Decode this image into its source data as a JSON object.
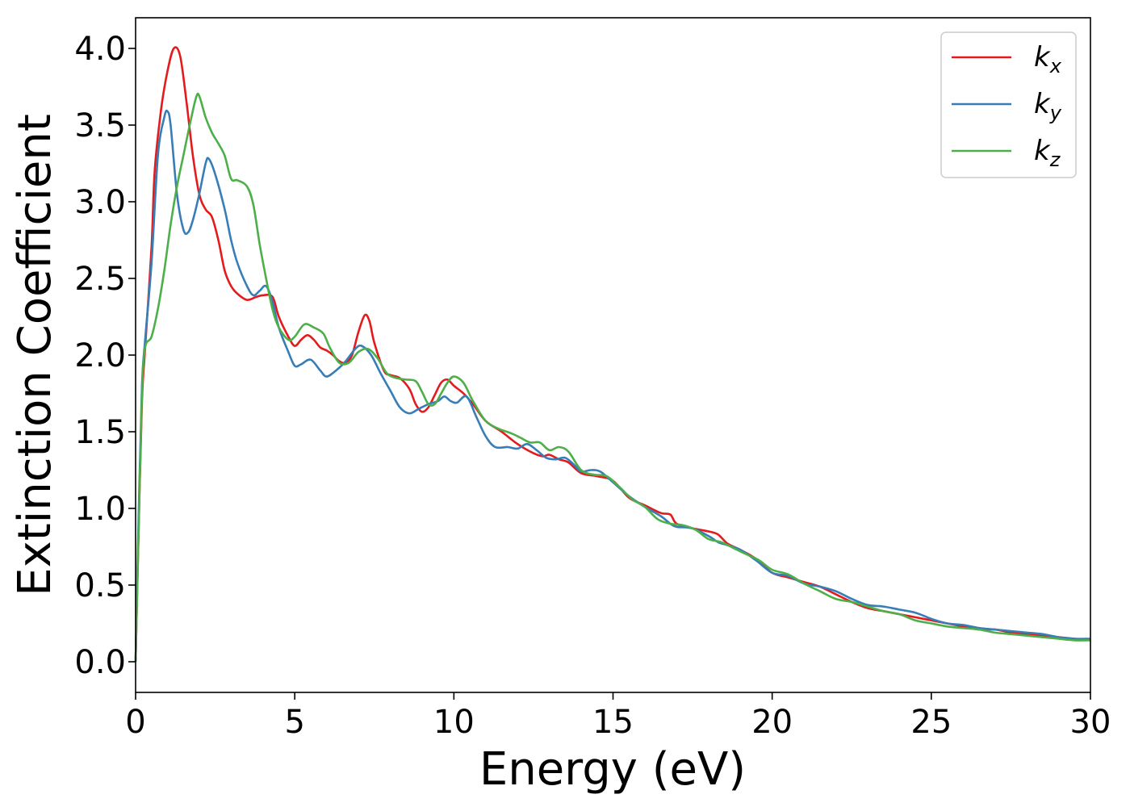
{
  "chart_data": {
    "type": "line",
    "title": "",
    "xlabel": "Energy (eV)",
    "ylabel": "Extinction Coefficient",
    "xlim": [
      0,
      30
    ],
    "ylim": [
      -0.2,
      4.2
    ],
    "xticks": [
      0,
      5,
      10,
      15,
      20,
      25,
      30
    ],
    "xtick_labels": [
      "0",
      "5",
      "10",
      "15",
      "20",
      "25",
      "30"
    ],
    "yticks": [
      0.0,
      0.5,
      1.0,
      1.5,
      2.0,
      2.5,
      3.0,
      3.5,
      4.0
    ],
    "ytick_labels": [
      "0.0",
      "0.5",
      "1.0",
      "1.5",
      "2.0",
      "2.5",
      "3.0",
      "3.5",
      "4.0"
    ],
    "grid": false,
    "legend_position": "top-right",
    "series": [
      {
        "name": "k",
        "subscript": "x",
        "color": "#e41a1c",
        "points": [
          [
            0,
            0
          ],
          [
            0.1,
            0.9
          ],
          [
            0.2,
            1.7
          ],
          [
            0.3,
            2.05
          ],
          [
            0.5,
            2.7
          ],
          [
            0.6,
            3.2
          ],
          [
            0.8,
            3.6
          ],
          [
            1.0,
            3.85
          ],
          [
            1.2,
            4.0
          ],
          [
            1.4,
            3.95
          ],
          [
            1.6,
            3.65
          ],
          [
            1.8,
            3.3
          ],
          [
            2.0,
            3.05
          ],
          [
            2.2,
            2.95
          ],
          [
            2.4,
            2.9
          ],
          [
            2.6,
            2.75
          ],
          [
            2.8,
            2.55
          ],
          [
            3.0,
            2.45
          ],
          [
            3.2,
            2.4
          ],
          [
            3.5,
            2.36
          ],
          [
            3.8,
            2.38
          ],
          [
            4.0,
            2.39
          ],
          [
            4.3,
            2.38
          ],
          [
            4.5,
            2.25
          ],
          [
            4.8,
            2.12
          ],
          [
            5.0,
            2.06
          ],
          [
            5.2,
            2.1
          ],
          [
            5.4,
            2.13
          ],
          [
            5.6,
            2.1
          ],
          [
            5.8,
            2.05
          ],
          [
            6.0,
            2.03
          ],
          [
            6.2,
            2.0
          ],
          [
            6.4,
            1.96
          ],
          [
            6.6,
            1.95
          ],
          [
            6.8,
            2.0
          ],
          [
            7.0,
            2.15
          ],
          [
            7.2,
            2.26
          ],
          [
            7.35,
            2.22
          ],
          [
            7.5,
            2.08
          ],
          [
            7.8,
            1.9
          ],
          [
            8.0,
            1.87
          ],
          [
            8.3,
            1.85
          ],
          [
            8.6,
            1.78
          ],
          [
            8.8,
            1.68
          ],
          [
            9.0,
            1.63
          ],
          [
            9.2,
            1.66
          ],
          [
            9.4,
            1.74
          ],
          [
            9.6,
            1.82
          ],
          [
            9.8,
            1.84
          ],
          [
            10.0,
            1.8
          ],
          [
            10.3,
            1.75
          ],
          [
            10.6,
            1.68
          ],
          [
            11.0,
            1.57
          ],
          [
            11.5,
            1.5
          ],
          [
            12.0,
            1.42
          ],
          [
            12.5,
            1.36
          ],
          [
            12.8,
            1.34
          ],
          [
            13.0,
            1.35
          ],
          [
            13.3,
            1.32
          ],
          [
            13.6,
            1.3
          ],
          [
            14.0,
            1.23
          ],
          [
            14.5,
            1.21
          ],
          [
            15.0,
            1.18
          ],
          [
            15.5,
            1.07
          ],
          [
            16.0,
            1.02
          ],
          [
            16.5,
            0.97
          ],
          [
            16.8,
            0.96
          ],
          [
            17.0,
            0.9
          ],
          [
            17.5,
            0.87
          ],
          [
            18.0,
            0.85
          ],
          [
            18.3,
            0.83
          ],
          [
            18.6,
            0.77
          ],
          [
            19.0,
            0.73
          ],
          [
            19.5,
            0.67
          ],
          [
            20.0,
            0.58
          ],
          [
            20.5,
            0.55
          ],
          [
            21.0,
            0.52
          ],
          [
            21.5,
            0.49
          ],
          [
            22.0,
            0.44
          ],
          [
            22.5,
            0.39
          ],
          [
            23.0,
            0.35
          ],
          [
            23.5,
            0.33
          ],
          [
            24.0,
            0.31
          ],
          [
            24.5,
            0.29
          ],
          [
            25.0,
            0.27
          ],
          [
            25.5,
            0.25
          ],
          [
            26.0,
            0.23
          ],
          [
            26.5,
            0.21
          ],
          [
            27.0,
            0.21
          ],
          [
            27.5,
            0.19
          ],
          [
            28.0,
            0.18
          ],
          [
            28.5,
            0.17
          ],
          [
            29.0,
            0.16
          ],
          [
            29.5,
            0.15
          ],
          [
            30.0,
            0.14
          ]
        ]
      },
      {
        "name": "k",
        "subscript": "y",
        "color": "#377eb8",
        "points": [
          [
            0,
            0
          ],
          [
            0.1,
            1.0
          ],
          [
            0.2,
            1.8
          ],
          [
            0.3,
            2.1
          ],
          [
            0.5,
            2.6
          ],
          [
            0.7,
            3.3
          ],
          [
            0.9,
            3.55
          ],
          [
            1.0,
            3.59
          ],
          [
            1.1,
            3.5
          ],
          [
            1.3,
            3.05
          ],
          [
            1.5,
            2.82
          ],
          [
            1.65,
            2.8
          ],
          [
            1.8,
            2.88
          ],
          [
            2.0,
            3.05
          ],
          [
            2.2,
            3.25
          ],
          [
            2.3,
            3.28
          ],
          [
            2.5,
            3.18
          ],
          [
            2.8,
            2.95
          ],
          [
            3.0,
            2.75
          ],
          [
            3.2,
            2.6
          ],
          [
            3.5,
            2.45
          ],
          [
            3.7,
            2.39
          ],
          [
            3.9,
            2.42
          ],
          [
            4.1,
            2.45
          ],
          [
            4.3,
            2.35
          ],
          [
            4.5,
            2.18
          ],
          [
            4.8,
            2.02
          ],
          [
            5.0,
            1.93
          ],
          [
            5.2,
            1.94
          ],
          [
            5.5,
            1.97
          ],
          [
            5.8,
            1.9
          ],
          [
            6.0,
            1.86
          ],
          [
            6.3,
            1.9
          ],
          [
            6.6,
            1.96
          ],
          [
            6.9,
            2.04
          ],
          [
            7.1,
            2.06
          ],
          [
            7.4,
            2.0
          ],
          [
            7.7,
            1.88
          ],
          [
            8.0,
            1.77
          ],
          [
            8.3,
            1.66
          ],
          [
            8.6,
            1.62
          ],
          [
            8.9,
            1.65
          ],
          [
            9.2,
            1.68
          ],
          [
            9.5,
            1.7
          ],
          [
            9.7,
            1.73
          ],
          [
            9.9,
            1.7
          ],
          [
            10.1,
            1.69
          ],
          [
            10.4,
            1.73
          ],
          [
            10.7,
            1.6
          ],
          [
            11.0,
            1.47
          ],
          [
            11.3,
            1.4
          ],
          [
            11.7,
            1.4
          ],
          [
            12.0,
            1.39
          ],
          [
            12.3,
            1.42
          ],
          [
            12.6,
            1.38
          ],
          [
            12.9,
            1.33
          ],
          [
            13.2,
            1.32
          ],
          [
            13.5,
            1.33
          ],
          [
            13.8,
            1.28
          ],
          [
            14.0,
            1.24
          ],
          [
            14.3,
            1.25
          ],
          [
            14.6,
            1.24
          ],
          [
            15.0,
            1.17
          ],
          [
            15.5,
            1.08
          ],
          [
            16.0,
            1.01
          ],
          [
            16.5,
            0.95
          ],
          [
            16.8,
            0.9
          ],
          [
            17.0,
            0.88
          ],
          [
            17.5,
            0.87
          ],
          [
            18.0,
            0.82
          ],
          [
            18.3,
            0.78
          ],
          [
            18.6,
            0.76
          ],
          [
            19.0,
            0.73
          ],
          [
            19.5,
            0.66
          ],
          [
            20.0,
            0.58
          ],
          [
            20.5,
            0.56
          ],
          [
            21.0,
            0.51
          ],
          [
            21.5,
            0.49
          ],
          [
            22.0,
            0.46
          ],
          [
            22.5,
            0.41
          ],
          [
            23.0,
            0.37
          ],
          [
            23.5,
            0.36
          ],
          [
            24.0,
            0.34
          ],
          [
            24.5,
            0.32
          ],
          [
            25.0,
            0.28
          ],
          [
            25.5,
            0.25
          ],
          [
            26.0,
            0.24
          ],
          [
            26.5,
            0.22
          ],
          [
            27.0,
            0.21
          ],
          [
            27.5,
            0.2
          ],
          [
            28.0,
            0.19
          ],
          [
            28.5,
            0.18
          ],
          [
            29.0,
            0.16
          ],
          [
            29.5,
            0.15
          ],
          [
            30.0,
            0.15
          ]
        ]
      },
      {
        "name": "k",
        "subscript": "z",
        "color": "#4daf4a",
        "points": [
          [
            0,
            0
          ],
          [
            0.1,
            0.9
          ],
          [
            0.2,
            1.75
          ],
          [
            0.3,
            2.05
          ],
          [
            0.5,
            2.12
          ],
          [
            0.7,
            2.3
          ],
          [
            0.9,
            2.55
          ],
          [
            1.1,
            2.85
          ],
          [
            1.3,
            3.1
          ],
          [
            1.5,
            3.3
          ],
          [
            1.7,
            3.5
          ],
          [
            1.9,
            3.68
          ],
          [
            2.0,
            3.69
          ],
          [
            2.2,
            3.55
          ],
          [
            2.4,
            3.45
          ],
          [
            2.6,
            3.38
          ],
          [
            2.8,
            3.3
          ],
          [
            3.0,
            3.15
          ],
          [
            3.2,
            3.14
          ],
          [
            3.5,
            3.1
          ],
          [
            3.7,
            2.98
          ],
          [
            3.9,
            2.72
          ],
          [
            4.1,
            2.5
          ],
          [
            4.3,
            2.3
          ],
          [
            4.5,
            2.18
          ],
          [
            4.8,
            2.1
          ],
          [
            5.0,
            2.12
          ],
          [
            5.3,
            2.2
          ],
          [
            5.6,
            2.18
          ],
          [
            5.9,
            2.14
          ],
          [
            6.1,
            2.05
          ],
          [
            6.4,
            1.95
          ],
          [
            6.7,
            1.95
          ],
          [
            7.0,
            2.02
          ],
          [
            7.3,
            2.04
          ],
          [
            7.6,
            1.98
          ],
          [
            7.9,
            1.88
          ],
          [
            8.2,
            1.85
          ],
          [
            8.5,
            1.84
          ],
          [
            8.8,
            1.83
          ],
          [
            9.0,
            1.76
          ],
          [
            9.2,
            1.68
          ],
          [
            9.4,
            1.68
          ],
          [
            9.6,
            1.75
          ],
          [
            9.8,
            1.82
          ],
          [
            10.0,
            1.86
          ],
          [
            10.3,
            1.82
          ],
          [
            10.6,
            1.7
          ],
          [
            11.0,
            1.57
          ],
          [
            11.4,
            1.52
          ],
          [
            11.8,
            1.49
          ],
          [
            12.1,
            1.46
          ],
          [
            12.4,
            1.43
          ],
          [
            12.7,
            1.43
          ],
          [
            13.0,
            1.38
          ],
          [
            13.3,
            1.4
          ],
          [
            13.6,
            1.37
          ],
          [
            14.0,
            1.25
          ],
          [
            14.4,
            1.22
          ],
          [
            14.8,
            1.21
          ],
          [
            15.2,
            1.14
          ],
          [
            15.6,
            1.06
          ],
          [
            16.0,
            1.01
          ],
          [
            16.4,
            0.93
          ],
          [
            16.8,
            0.9
          ],
          [
            17.2,
            0.89
          ],
          [
            17.6,
            0.86
          ],
          [
            18.0,
            0.8
          ],
          [
            18.4,
            0.78
          ],
          [
            18.8,
            0.74
          ],
          [
            19.2,
            0.7
          ],
          [
            19.6,
            0.66
          ],
          [
            20.0,
            0.6
          ],
          [
            20.5,
            0.57
          ],
          [
            21.0,
            0.51
          ],
          [
            21.5,
            0.46
          ],
          [
            22.0,
            0.41
          ],
          [
            22.5,
            0.39
          ],
          [
            23.0,
            0.36
          ],
          [
            23.5,
            0.33
          ],
          [
            24.0,
            0.31
          ],
          [
            24.5,
            0.27
          ],
          [
            25.0,
            0.25
          ],
          [
            25.5,
            0.23
          ],
          [
            26.0,
            0.22
          ],
          [
            26.5,
            0.21
          ],
          [
            27.0,
            0.19
          ],
          [
            27.5,
            0.18
          ],
          [
            28.0,
            0.17
          ],
          [
            28.5,
            0.16
          ],
          [
            29.0,
            0.15
          ],
          [
            29.5,
            0.14
          ],
          [
            30.0,
            0.14
          ]
        ]
      }
    ]
  }
}
